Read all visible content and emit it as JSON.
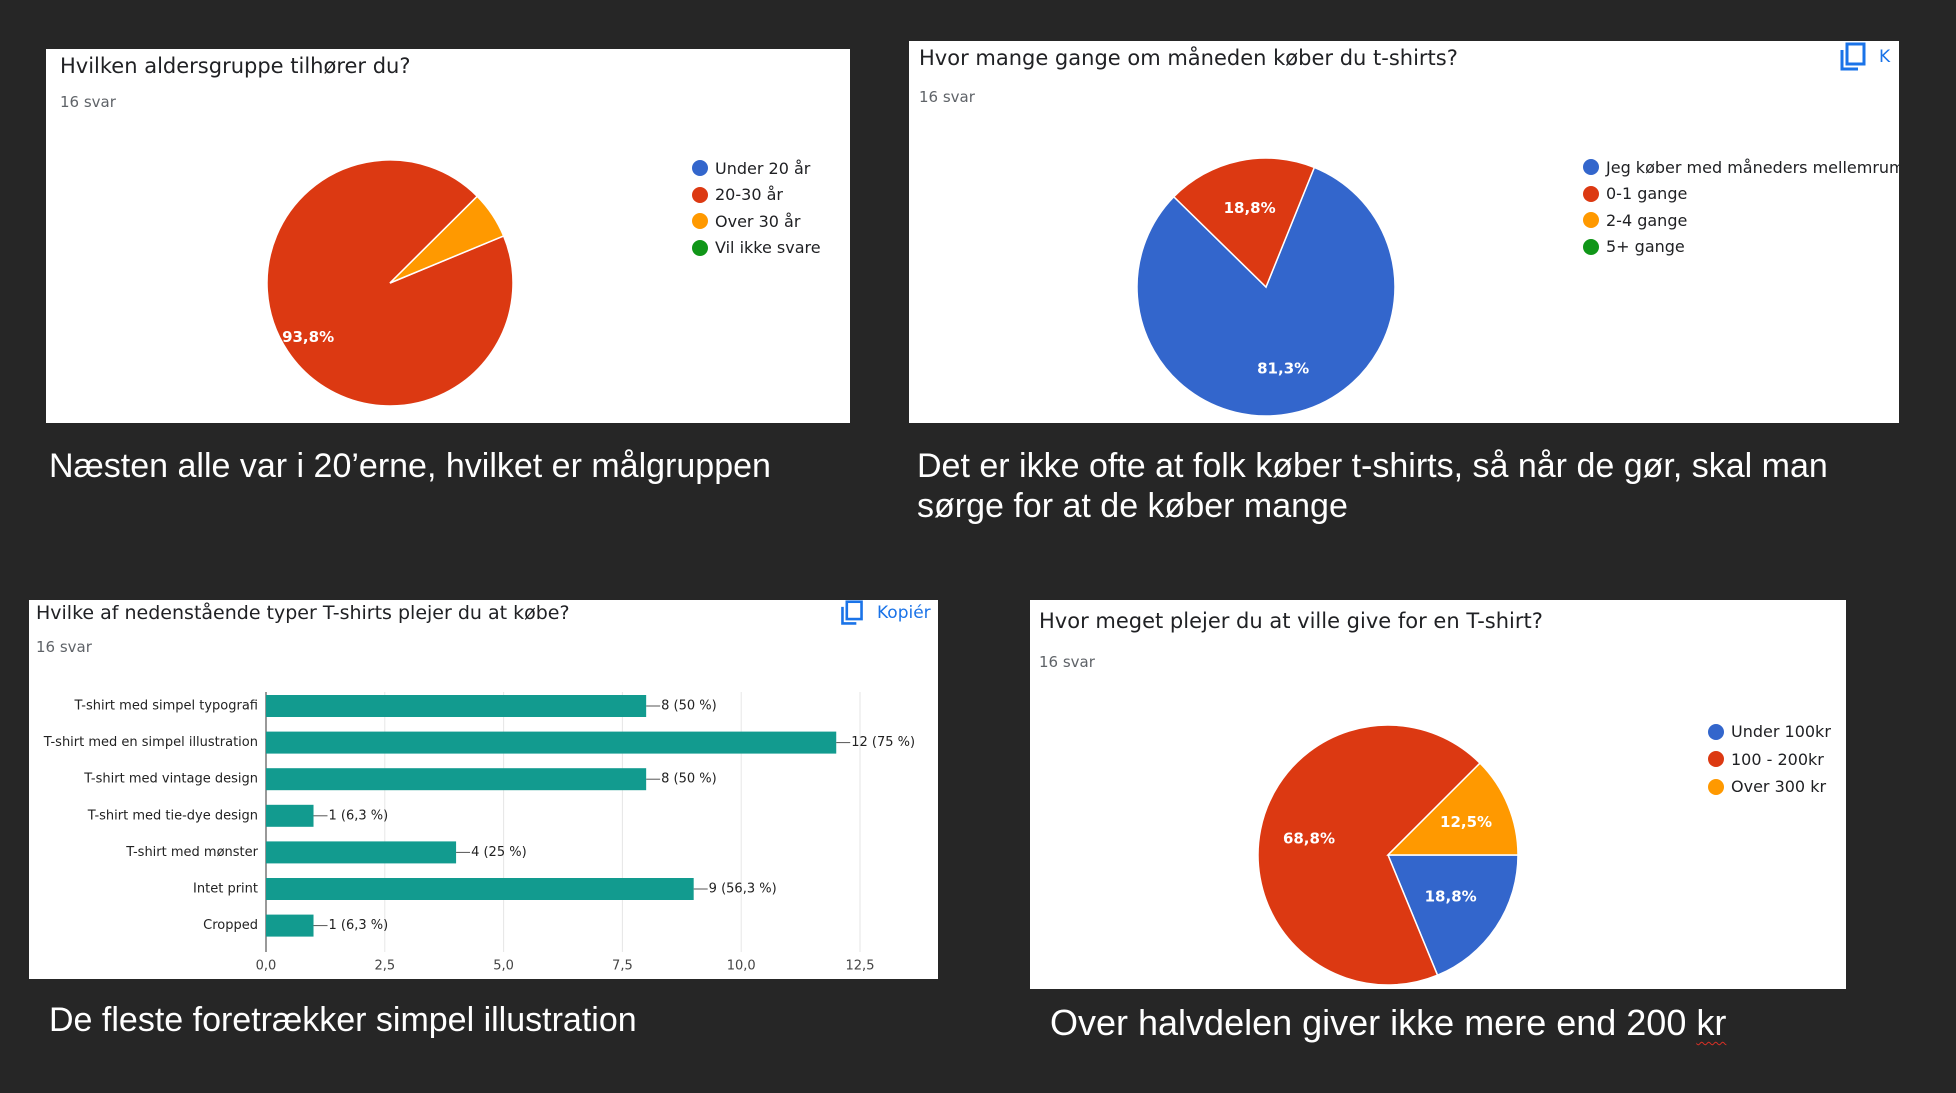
{
  "colors": {
    "blue": "#3366cc",
    "red": "#dc3912",
    "orange": "#ff9900",
    "green": "#109618",
    "teal": "#129b8f",
    "link": "#1a73e8"
  },
  "charts": [
    {
      "title": "Hvilken aldersgruppe tilhører du?",
      "count": "16 svar",
      "legend": [
        "Under 20 år",
        "20-30 år",
        "Over 30 år",
        "Vil ikke svare"
      ],
      "caption": "Næsten alle var i 20’erne, hvilket er målgruppen"
    },
    {
      "title": "Hvor mange gange om måneden køber du t-shirts?",
      "count": "16 svar",
      "legend": [
        "Jeg køber med måneders mellemrum",
        "0-1 gange",
        "2-4 gange",
        "5+ gange"
      ],
      "caption_lines": [
        "Det er ikke ofte at folk køber t-shirts, så når de gør, skal man",
        "sørge for at de køber mange"
      ],
      "copy_label": "K"
    },
    {
      "title": "Hvilke af nedenstående typer T-shirts plejer du at købe?",
      "count": "16 svar",
      "copy_label": "Kopiér",
      "caption": "De fleste foretrækker simpel illustration"
    },
    {
      "title": "Hvor meget plejer du at ville give for en T-shirt?",
      "count": "16 svar",
      "legend": [
        "Under 100kr",
        "100 - 200kr",
        "Over 300 kr"
      ],
      "caption_main": "Over halvdelen giver ikke mere end 200 ",
      "caption_tail": "kr"
    }
  ],
  "chart_data": [
    {
      "type": "pie",
      "title": "Hvilken aldersgruppe tilhører du?",
      "slices": [
        {
          "label": "Under 20 år",
          "value": 0,
          "color": "#3366cc"
        },
        {
          "label": "20-30 år",
          "value": 93.8,
          "color": "#dc3912",
          "data_label": "93,8%"
        },
        {
          "label": "Over 30 år",
          "value": 6.2,
          "color": "#ff9900"
        },
        {
          "label": "Vil ikke svare",
          "value": 0,
          "color": "#109618"
        }
      ],
      "legend_position": "right"
    },
    {
      "type": "pie",
      "title": "Hvor mange gange om måneden køber du t-shirts?",
      "slices": [
        {
          "label": "Jeg køber med måneders mellemrum",
          "value": 81.3,
          "color": "#3366cc",
          "data_label": "81,3%"
        },
        {
          "label": "0-1 gange",
          "value": 18.8,
          "color": "#dc3912",
          "data_label": "18,8%"
        },
        {
          "label": "2-4 gange",
          "value": 0,
          "color": "#ff9900"
        },
        {
          "label": "5+ gange",
          "value": 0,
          "color": "#109618"
        }
      ],
      "legend_position": "right"
    },
    {
      "type": "bar",
      "orientation": "horizontal",
      "title": "Hvilke af nedenstående typer T-shirts plejer du at købe?",
      "categories": [
        "T-shirt med simpel typografi",
        "T-shirt med en simpel illustration",
        "T-shirt med vintage design",
        "T-shirt med tie-dye design",
        "T-shirt med mønster",
        "Intet print",
        "Cropped"
      ],
      "values": [
        8,
        12,
        8,
        1,
        4,
        9,
        1
      ],
      "data_labels": [
        "8 (50 %)",
        "12 (75 %)",
        "8 (50 %)",
        "1 (6,3 %)",
        "4 (25 %)",
        "9 (56,3 %)",
        "1 (6,3 %)"
      ],
      "xlim": [
        0,
        12.5
      ],
      "xticks": [
        0,
        2.5,
        5,
        7.5,
        10,
        12.5
      ],
      "xtick_labels": [
        "0,0",
        "2,5",
        "5,0",
        "7,5",
        "10,0",
        "12,5"
      ],
      "grid": true,
      "color": "#129b8f"
    },
    {
      "type": "pie",
      "title": "Hvor meget plejer du at ville give for en T-shirt?",
      "slices": [
        {
          "label": "Under 100kr",
          "value": 18.8,
          "color": "#3366cc",
          "data_label": "18,8%"
        },
        {
          "label": "100 - 200kr",
          "value": 68.8,
          "color": "#dc3912",
          "data_label": "68,8%"
        },
        {
          "label": "Over 300 kr",
          "value": 12.5,
          "color": "#ff9900",
          "data_label": "12,5%"
        }
      ],
      "legend_position": "right"
    }
  ]
}
